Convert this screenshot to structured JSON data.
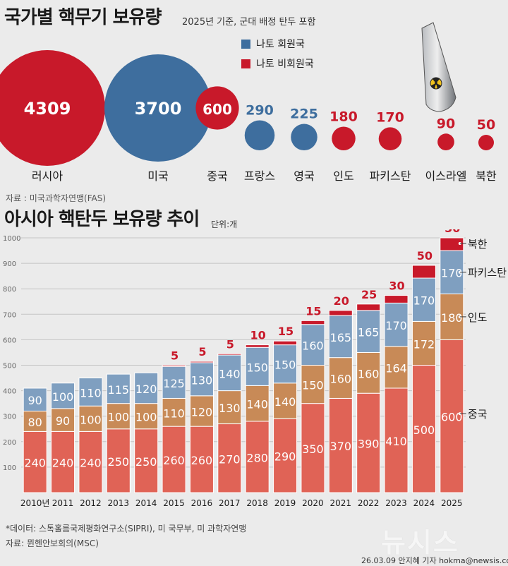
{
  "header": {
    "title": "국가별 핵무기 보유량",
    "subtitle": "2025년 기준, 군대 배정 탄두 포함",
    "legend": [
      {
        "label": "나토 회원국",
        "color": "#3e6e9e"
      },
      {
        "label": "나토 비회원국",
        "color": "#c8192a"
      }
    ],
    "source": "자료 : 미국과학자연맹(FAS)"
  },
  "section2": {
    "title": "아시아 핵탄두 보유량 추이",
    "unit": "단위:개"
  },
  "footer": {
    "note": "*데이터: 스톡홀름국제평화연구소(SIPRI), 미 국무부, 미 과학자연맹",
    "source": "자료: 뮌헨안보회의(MSC)",
    "credit": "26.03.09 안지혜 기자 hokma@newsis.com",
    "watermark": "뉴시스"
  },
  "chart_data": [
    {
      "type": "bubble",
      "title": "국가별 핵무기 보유량",
      "subtitle": "2025년 기준, 군대 배정 탄두 포함",
      "categories": [
        "러시아",
        "미국",
        "중국",
        "프랑스",
        "영국",
        "인도",
        "파키스탄",
        "이스라엘",
        "북한"
      ],
      "values": [
        4309,
        3700,
        600,
        290,
        225,
        180,
        170,
        90,
        50
      ],
      "group": [
        "나토 비회원국",
        "나토 회원국",
        "나토 비회원국",
        "나토 회원국",
        "나토 회원국",
        "나토 비회원국",
        "나토 비회원국",
        "나토 비회원국",
        "나토 비회원국"
      ],
      "colors": {
        "나토 회원국": "#3e6e9e",
        "나토 비회원국": "#c8192a"
      }
    },
    {
      "type": "bar",
      "stacked": true,
      "title": "아시아 핵탄두 보유량 추이",
      "categories": [
        "2010년",
        "2011",
        "2012",
        "2013",
        "2014",
        "2015",
        "2016",
        "2017",
        "2018",
        "2019",
        "2020",
        "2021",
        "2022",
        "2023",
        "2024",
        "2025"
      ],
      "series": [
        {
          "name": "중국",
          "color": "#e06356",
          "values": [
            240,
            240,
            240,
            250,
            250,
            260,
            260,
            270,
            280,
            290,
            350,
            370,
            390,
            410,
            500,
            600
          ]
        },
        {
          "name": "인도",
          "color": "#c88a57",
          "values": [
            80,
            90,
            100,
            100,
            100,
            110,
            120,
            130,
            140,
            140,
            150,
            160,
            160,
            164,
            172,
            180
          ]
        },
        {
          "name": "파키스탄",
          "color": "#7f9fc0",
          "values": [
            90,
            100,
            110,
            115,
            120,
            125,
            130,
            140,
            150,
            150,
            160,
            165,
            165,
            170,
            170,
            170
          ]
        },
        {
          "name": "북한",
          "color": "#c8192a",
          "values": [
            0,
            0,
            0,
            0,
            0,
            5,
            5,
            5,
            10,
            15,
            15,
            20,
            25,
            30,
            50,
            50
          ]
        }
      ],
      "ylim": [
        0,
        1000
      ],
      "yticks": [
        100,
        200,
        300,
        400,
        500,
        600,
        700,
        800,
        900,
        1000
      ],
      "grid": true
    }
  ]
}
